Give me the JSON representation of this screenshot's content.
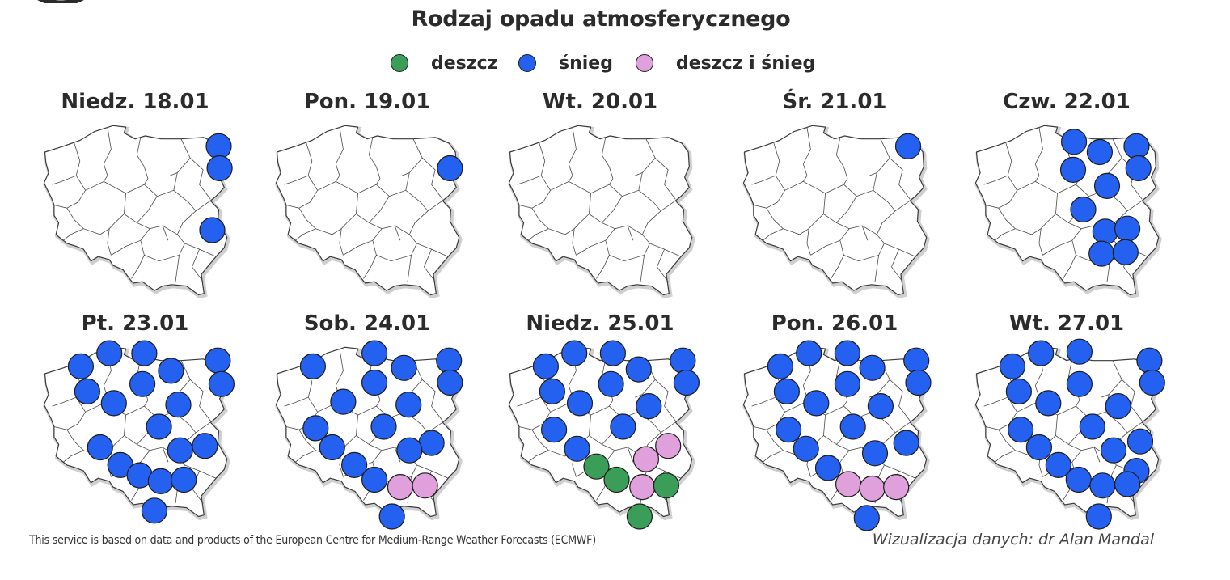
{
  "title": "Rodzaj opadu atmosferycznego",
  "legend": [
    {
      "label": "deszcz",
      "color": "#3a9e58"
    },
    {
      "label": "śnieg",
      "color": "#2461f0"
    },
    {
      "label": "deszcz i śnieg",
      "color": "#e0a0dc"
    }
  ],
  "days": [
    {
      "label": "Niedz. 18.01",
      "points": [
        {
          "type": "śnieg",
          "lon": 23.65,
          "lat": 54.1
        },
        {
          "type": "śnieg",
          "lon": 23.7,
          "lat": 53.35
        },
        {
          "type": "śnieg",
          "lon": 23.3,
          "lat": 51.25
        }
      ]
    },
    {
      "label": "Pon. 19.01",
      "points": [
        {
          "type": "śnieg",
          "lon": 23.6,
          "lat": 53.35
        }
      ]
    },
    {
      "label": "Wt. 20.01",
      "points": []
    },
    {
      "label": "Śr. 21.01",
      "points": [
        {
          "type": "śnieg",
          "lon": 23.1,
          "lat": 54.1
        }
      ]
    },
    {
      "label": "Czw. 22.01",
      "points": [
        {
          "type": "śnieg",
          "lon": 19.5,
          "lat": 54.25
        },
        {
          "type": "śnieg",
          "lon": 20.9,
          "lat": 53.9
        },
        {
          "type": "śnieg",
          "lon": 22.9,
          "lat": 54.1
        },
        {
          "type": "śnieg",
          "lon": 19.45,
          "lat": 53.3
        },
        {
          "type": "śnieg",
          "lon": 23.0,
          "lat": 53.35
        },
        {
          "type": "śnieg",
          "lon": 21.3,
          "lat": 52.75
        },
        {
          "type": "śnieg",
          "lon": 20.0,
          "lat": 51.95
        },
        {
          "type": "śnieg",
          "lon": 21.2,
          "lat": 51.2
        },
        {
          "type": "śnieg",
          "lon": 22.4,
          "lat": 51.3
        },
        {
          "type": "śnieg",
          "lon": 21.0,
          "lat": 50.45
        },
        {
          "type": "śnieg",
          "lon": 22.3,
          "lat": 50.5
        }
      ]
    },
    {
      "label": "Pt. 23.01",
      "points": [
        {
          "type": "śnieg",
          "lon": 17.7,
          "lat": 54.6
        },
        {
          "type": "śnieg",
          "lon": 19.6,
          "lat": 54.6
        },
        {
          "type": "śnieg",
          "lon": 23.6,
          "lat": 54.35
        },
        {
          "type": "śnieg",
          "lon": 16.15,
          "lat": 54.15
        },
        {
          "type": "śnieg",
          "lon": 21.05,
          "lat": 54.0
        },
        {
          "type": "śnieg",
          "lon": 23.8,
          "lat": 53.55
        },
        {
          "type": "śnieg",
          "lon": 19.5,
          "lat": 53.55
        },
        {
          "type": "śnieg",
          "lon": 16.5,
          "lat": 53.3
        },
        {
          "type": "śnieg",
          "lon": 17.95,
          "lat": 52.9
        },
        {
          "type": "śnieg",
          "lon": 21.45,
          "lat": 52.85
        },
        {
          "type": "śnieg",
          "lon": 20.4,
          "lat": 52.1
        },
        {
          "type": "śnieg",
          "lon": 17.2,
          "lat": 51.4
        },
        {
          "type": "śnieg",
          "lon": 21.55,
          "lat": 51.3
        },
        {
          "type": "śnieg",
          "lon": 22.9,
          "lat": 51.45
        },
        {
          "type": "śnieg",
          "lon": 18.3,
          "lat": 50.8
        },
        {
          "type": "śnieg",
          "lon": 19.35,
          "lat": 50.45
        },
        {
          "type": "śnieg",
          "lon": 20.5,
          "lat": 50.25
        },
        {
          "type": "śnieg",
          "lon": 21.75,
          "lat": 50.3
        },
        {
          "type": "śnieg",
          "lon": 20.15,
          "lat": 49.25
        }
      ]
    },
    {
      "label": "Sob. 24.01",
      "points": [
        {
          "type": "śnieg",
          "lon": 19.5,
          "lat": 54.6
        },
        {
          "type": "śnieg",
          "lon": 23.55,
          "lat": 54.35
        },
        {
          "type": "śnieg",
          "lon": 16.15,
          "lat": 54.15
        },
        {
          "type": "śnieg",
          "lon": 21.1,
          "lat": 54.1
        },
        {
          "type": "śnieg",
          "lon": 23.6,
          "lat": 53.6
        },
        {
          "type": "śnieg",
          "lon": 19.5,
          "lat": 53.6
        },
        {
          "type": "śnieg",
          "lon": 17.8,
          "lat": 52.95
        },
        {
          "type": "śnieg",
          "lon": 21.35,
          "lat": 52.85
        },
        {
          "type": "śnieg",
          "lon": 16.3,
          "lat": 52.05
        },
        {
          "type": "śnieg",
          "lon": 20.0,
          "lat": 52.1
        },
        {
          "type": "śnieg",
          "lon": 22.6,
          "lat": 51.55
        },
        {
          "type": "śnieg",
          "lon": 17.2,
          "lat": 51.4
        },
        {
          "type": "śnieg",
          "lon": 21.4,
          "lat": 51.3
        },
        {
          "type": "śnieg",
          "lon": 18.4,
          "lat": 50.8
        },
        {
          "type": "śnieg",
          "lon": 19.5,
          "lat": 50.3
        },
        {
          "type": "deszcz i śnieg",
          "lon": 20.9,
          "lat": 50.05
        },
        {
          "type": "deszcz i śnieg",
          "lon": 22.25,
          "lat": 50.1
        },
        {
          "type": "śnieg",
          "lon": 20.45,
          "lat": 49.05
        }
      ]
    },
    {
      "label": "Niedz. 25.01",
      "points": [
        {
          "type": "śnieg",
          "lon": 17.7,
          "lat": 54.6
        },
        {
          "type": "śnieg",
          "lon": 19.8,
          "lat": 54.6
        },
        {
          "type": "śnieg",
          "lon": 23.6,
          "lat": 54.35
        },
        {
          "type": "śnieg",
          "lon": 16.15,
          "lat": 54.15
        },
        {
          "type": "śnieg",
          "lon": 21.2,
          "lat": 54.05
        },
        {
          "type": "śnieg",
          "lon": 23.8,
          "lat": 53.6
        },
        {
          "type": "śnieg",
          "lon": 19.7,
          "lat": 53.55
        },
        {
          "type": "śnieg",
          "lon": 16.5,
          "lat": 53.3
        },
        {
          "type": "śnieg",
          "lon": 18.0,
          "lat": 52.9
        },
        {
          "type": "śnieg",
          "lon": 21.75,
          "lat": 52.8
        },
        {
          "type": "śnieg",
          "lon": 16.6,
          "lat": 52.0
        },
        {
          "type": "śnieg",
          "lon": 20.35,
          "lat": 52.1
        },
        {
          "type": "deszcz i śnieg",
          "lon": 22.8,
          "lat": 51.45
        },
        {
          "type": "śnieg",
          "lon": 17.85,
          "lat": 51.35
        },
        {
          "type": "deszcz i śnieg",
          "lon": 21.6,
          "lat": 51.0
        },
        {
          "type": "deszcz",
          "lon": 18.9,
          "lat": 50.75
        },
        {
          "type": "deszcz",
          "lon": 20.0,
          "lat": 50.3
        },
        {
          "type": "deszcz i śnieg",
          "lon": 21.4,
          "lat": 50.05
        },
        {
          "type": "deszcz",
          "lon": 22.7,
          "lat": 50.1
        },
        {
          "type": "deszcz",
          "lon": 21.25,
          "lat": 49.05
        }
      ]
    },
    {
      "label": "Pon. 26.01",
      "points": [
        {
          "type": "śnieg",
          "lon": 17.7,
          "lat": 54.6
        },
        {
          "type": "śnieg",
          "lon": 19.8,
          "lat": 54.6
        },
        {
          "type": "śnieg",
          "lon": 23.55,
          "lat": 54.35
        },
        {
          "type": "śnieg",
          "lon": 16.15,
          "lat": 54.15
        },
        {
          "type": "śnieg",
          "lon": 21.15,
          "lat": 54.1
        },
        {
          "type": "śnieg",
          "lon": 23.65,
          "lat": 53.6
        },
        {
          "type": "śnieg",
          "lon": 19.8,
          "lat": 53.55
        },
        {
          "type": "śnieg",
          "lon": 16.5,
          "lat": 53.3
        },
        {
          "type": "śnieg",
          "lon": 18.1,
          "lat": 52.9
        },
        {
          "type": "śnieg",
          "lon": 21.6,
          "lat": 52.8
        },
        {
          "type": "śnieg",
          "lon": 16.6,
          "lat": 52.0
        },
        {
          "type": "śnieg",
          "lon": 20.1,
          "lat": 52.1
        },
        {
          "type": "śnieg",
          "lon": 23.0,
          "lat": 51.55
        },
        {
          "type": "śnieg",
          "lon": 17.55,
          "lat": 51.35
        },
        {
          "type": "śnieg",
          "lon": 21.3,
          "lat": 51.2
        },
        {
          "type": "śnieg",
          "lon": 18.75,
          "lat": 50.7
        },
        {
          "type": "deszcz i śnieg",
          "lon": 19.85,
          "lat": 50.15
        },
        {
          "type": "deszcz i śnieg",
          "lon": 21.15,
          "lat": 50.0
        },
        {
          "type": "deszcz i śnieg",
          "lon": 22.45,
          "lat": 50.05
        },
        {
          "type": "śnieg",
          "lon": 20.85,
          "lat": 49.0
        }
      ]
    },
    {
      "label": "Wt. 27.01",
      "points": [
        {
          "type": "śnieg",
          "lon": 17.7,
          "lat": 54.6
        },
        {
          "type": "śnieg",
          "lon": 19.8,
          "lat": 54.65
        },
        {
          "type": "śnieg",
          "lon": 23.6,
          "lat": 54.35
        },
        {
          "type": "śnieg",
          "lon": 16.15,
          "lat": 54.15
        },
        {
          "type": "śnieg",
          "lon": 23.75,
          "lat": 53.6
        },
        {
          "type": "śnieg",
          "lon": 19.8,
          "lat": 53.55
        },
        {
          "type": "śnieg",
          "lon": 16.5,
          "lat": 53.3
        },
        {
          "type": "śnieg",
          "lon": 18.1,
          "lat": 52.9
        },
        {
          "type": "śnieg",
          "lon": 21.9,
          "lat": 52.8
        },
        {
          "type": "śnieg",
          "lon": 16.6,
          "lat": 52.0
        },
        {
          "type": "śnieg",
          "lon": 20.5,
          "lat": 52.1
        },
        {
          "type": "śnieg",
          "lon": 23.1,
          "lat": 51.6
        },
        {
          "type": "śnieg",
          "lon": 17.6,
          "lat": 51.4
        },
        {
          "type": "śnieg",
          "lon": 21.65,
          "lat": 51.3
        },
        {
          "type": "śnieg",
          "lon": 18.65,
          "lat": 50.8
        },
        {
          "type": "śnieg",
          "lon": 22.9,
          "lat": 50.6
        },
        {
          "type": "śnieg",
          "lon": 19.75,
          "lat": 50.3
        },
        {
          "type": "śnieg",
          "lon": 21.05,
          "lat": 50.1
        },
        {
          "type": "śnieg",
          "lon": 22.4,
          "lat": 50.15
        },
        {
          "type": "śnieg",
          "lon": 20.85,
          "lat": 49.05
        }
      ]
    }
  ],
  "footer": {
    "credit": "This service is based on data and products of the European Centre for Medium-Range Weather Forecasts (ECMWF)",
    "author": "Wizualizacja danych: dr Alan Mandal"
  }
}
